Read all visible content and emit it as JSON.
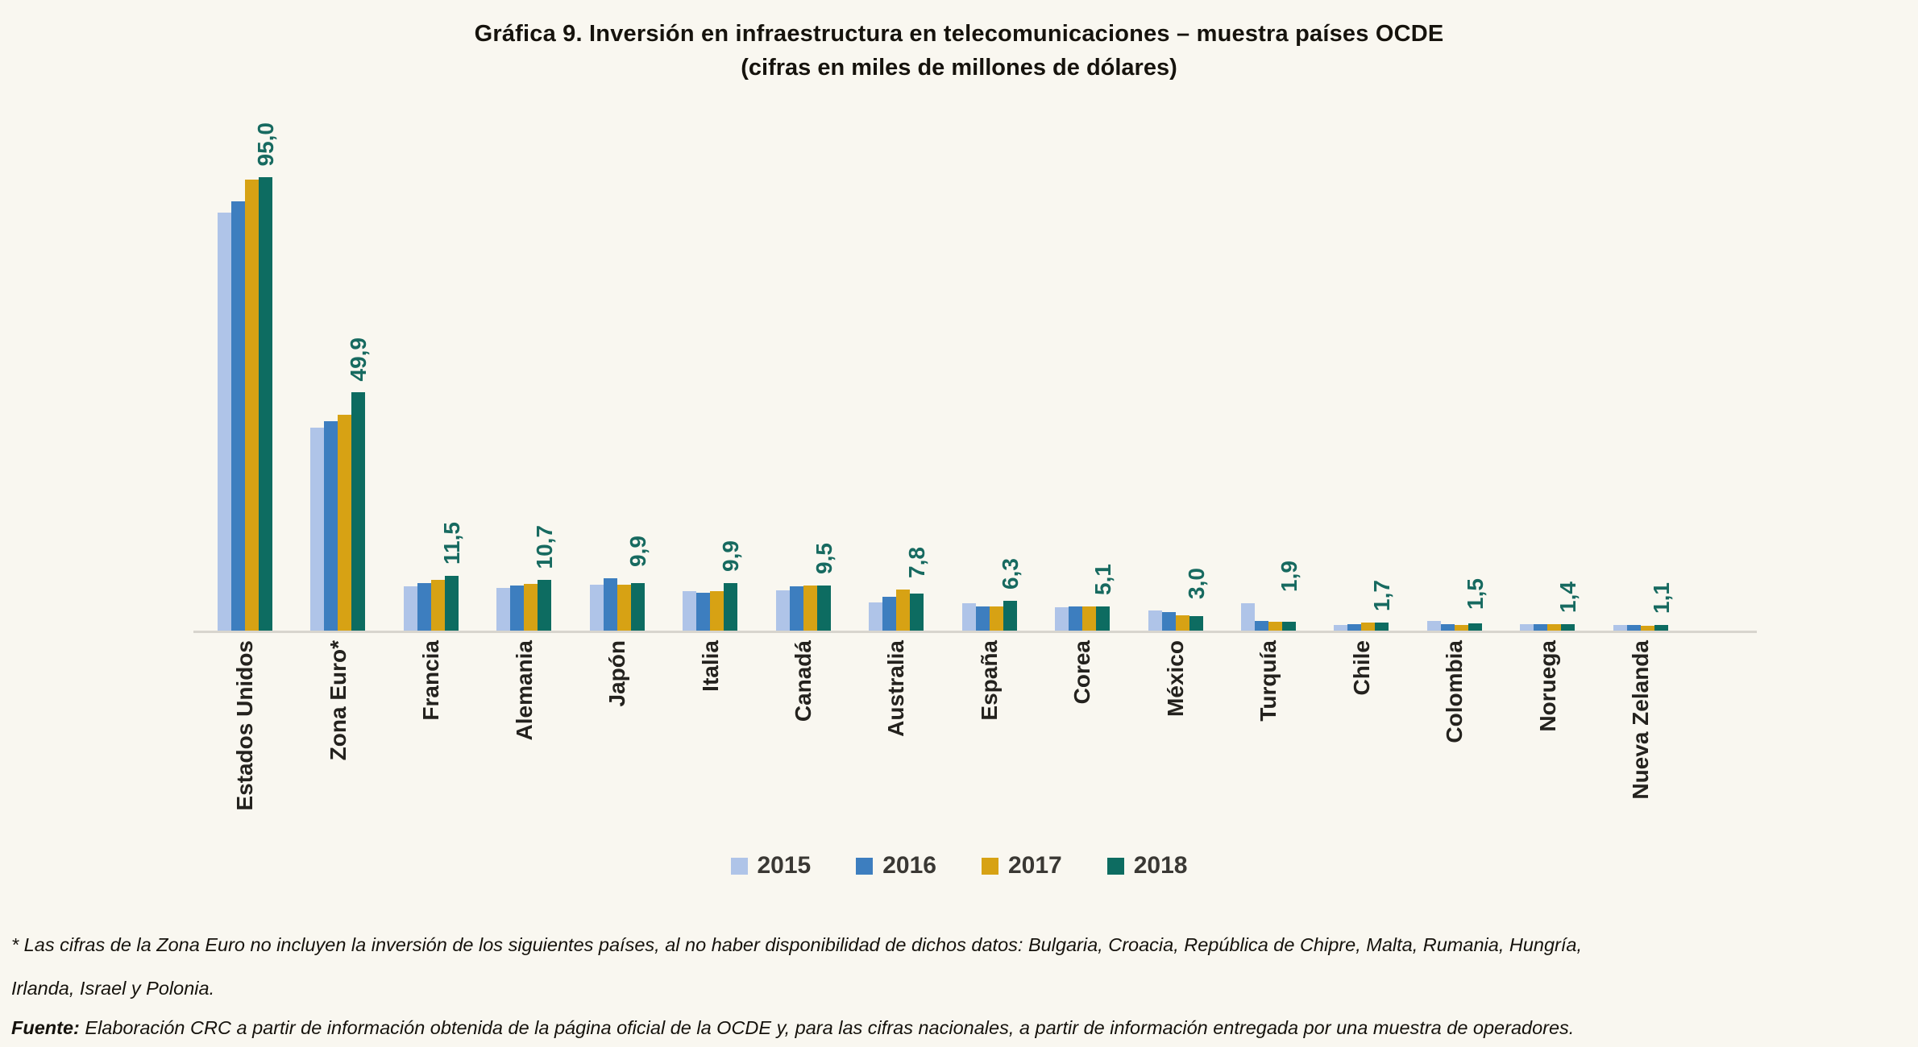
{
  "title": "Gráfica 9. Inversión en infraestructura en telecomunicaciones – muestra países OCDE",
  "subtitle": "(cifras en miles de millones de dólares)",
  "chart_data": {
    "type": "bar",
    "title": "Gráfica 9. Inversión en infraestructura en telecomunicaciones – muestra países OCDE",
    "subtitle": "(cifras en miles de millones de dólares)",
    "legend_position": "bottom",
    "grid": false,
    "y_axis": "hidden",
    "ylim": [
      0,
      100
    ],
    "series_names": [
      "2015",
      "2016",
      "2017",
      "2018"
    ],
    "series_colors": [
      "#afc4e8",
      "#3d7ebf",
      "#d7a214",
      "#0d6c61"
    ],
    "value_label_color": "#176a60",
    "value_labels_refer_to": "2018",
    "categories": [
      {
        "name": "Estados Unidos",
        "label": "95,0",
        "values": [
          87.5,
          90.0,
          94.5,
          95.0
        ]
      },
      {
        "name": "Zona Euro*",
        "label": "49,9",
        "values": [
          42.5,
          43.8,
          45.2,
          49.9
        ]
      },
      {
        "name": "Francia",
        "label": "11,5",
        "values": [
          9.2,
          9.9,
          10.7,
          11.5
        ]
      },
      {
        "name": "Alemania",
        "label": "10,7",
        "values": [
          9.0,
          9.4,
          9.8,
          10.7
        ]
      },
      {
        "name": "Japón",
        "label": "9,9",
        "values": [
          9.6,
          10.9,
          9.7,
          9.9
        ]
      },
      {
        "name": "Italia",
        "label": "9,9",
        "values": [
          8.3,
          7.9,
          8.2,
          9.9
        ]
      },
      {
        "name": "Canadá",
        "label": "9,5",
        "values": [
          8.5,
          9.2,
          9.4,
          9.5
        ]
      },
      {
        "name": "Australia",
        "label": "7,8",
        "values": [
          5.9,
          7.1,
          8.6,
          7.8
        ]
      },
      {
        "name": "España",
        "label": "6,3",
        "values": [
          5.8,
          5.1,
          5.1,
          6.3
        ]
      },
      {
        "name": "Corea",
        "label": "5,1",
        "values": [
          4.9,
          5.0,
          5.0,
          5.1
        ]
      },
      {
        "name": "México",
        "label": "3,0",
        "values": [
          4.3,
          3.9,
          3.2,
          3.0
        ]
      },
      {
        "name": "Turquía",
        "label": "1,9",
        "values": [
          5.7,
          2.1,
          1.8,
          1.9
        ]
      },
      {
        "name": "Chile",
        "label": "1,7",
        "values": [
          1.2,
          1.3,
          1.7,
          1.7
        ]
      },
      {
        "name": "Colombia",
        "label": "1,5",
        "values": [
          2.0,
          1.3,
          1.2,
          1.5
        ]
      },
      {
        "name": "Noruega",
        "label": "1,4",
        "values": [
          1.3,
          1.4,
          1.4,
          1.4
        ]
      },
      {
        "name": "Nueva Zelanda",
        "label": "1,1",
        "values": [
          1.1,
          1.1,
          1.0,
          1.1
        ]
      }
    ]
  },
  "footnotes": {
    "asterisk": "* Las cifras de la Zona Euro no incluyen la inversión de los siguientes países, al no haber disponibilidad de dichos datos: Bulgaria, Croacia, República de Chipre, Malta, Rumania, Hungría, Irlanda, Israel y Polonia.",
    "source_label": "Fuente:",
    "source_text": " Elaboración CRC a partir de información obtenida de la página oficial de la OCDE y, para las cifras nacionales, a partir de información entregada por una muestra de operadores."
  },
  "colors": {
    "background": "#f9f7f0",
    "axis_line": "#d8d5ce",
    "category_label": "#24221e",
    "title": "#16130d"
  }
}
